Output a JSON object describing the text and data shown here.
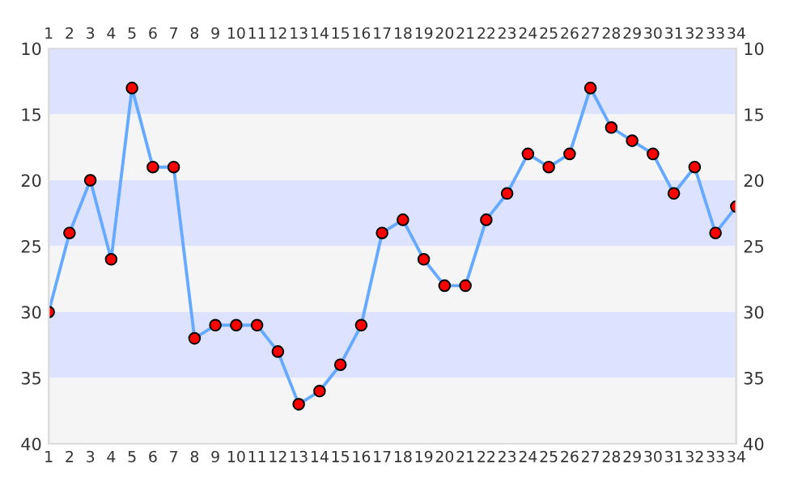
{
  "chart_data": {
    "type": "line",
    "x": [
      1,
      2,
      3,
      4,
      5,
      6,
      7,
      8,
      9,
      10,
      11,
      12,
      13,
      14,
      15,
      16,
      17,
      18,
      19,
      20,
      21,
      22,
      23,
      24,
      25,
      26,
      27,
      28,
      29,
      30,
      31,
      32,
      33,
      34
    ],
    "series": [
      {
        "color": "#66aaff",
        "colors": [
          "#ff0000",
          "#ff0000",
          "#ff0000",
          "#ff0000",
          "#ff0000",
          "#ff0000",
          "#ff0000",
          "#ff0000",
          "#ff0000",
          "#ff0000",
          "#ff0000",
          "#ff0000",
          "#ff0000",
          "#ff0000",
          "#ff0000",
          "#ff0000",
          "#ff0000",
          "#ff0000",
          "#ff0000",
          "#ff0000",
          "#ff0000",
          "#ff0000",
          "#ff0000",
          "#ff0000",
          "#ff0000",
          "#ff0000",
          "#ff0000",
          "#ff0000",
          "#ff0000",
          "#ff0000",
          "#ff0000",
          "#ff0000",
          "#ff0000",
          "#ff0000"
        ],
        "values": [
          30,
          24,
          20,
          26,
          13,
          19,
          19,
          32,
          31,
          31,
          31,
          33,
          37,
          36,
          34,
          31,
          24,
          23,
          26,
          28,
          28,
          23,
          21,
          18,
          19,
          18,
          13,
          16,
          17,
          18,
          21,
          19,
          24,
          22
        ]
      }
    ],
    "xlim": [
      1,
      34
    ],
    "xticks": [
      1,
      2,
      3,
      4,
      5,
      6,
      7,
      8,
      9,
      10,
      11,
      12,
      13,
      14,
      15,
      16,
      17,
      18,
      19,
      20,
      21,
      22,
      23,
      24,
      25,
      26,
      27,
      28,
      29,
      30,
      31,
      32,
      33,
      34
    ],
    "x2lim": [
      1,
      34
    ],
    "x2ticks": [
      1,
      2,
      3,
      4,
      5,
      6,
      7,
      8,
      9,
      10,
      11,
      12,
      13,
      14,
      15,
      16,
      17,
      18,
      19,
      20,
      21,
      22,
      23,
      24,
      25,
      26,
      27,
      28,
      29,
      30,
      31,
      32,
      33,
      34
    ],
    "ylim": [
      40,
      10
    ],
    "yticks": [
      10,
      15,
      20,
      25,
      30,
      35,
      40
    ],
    "y2lim": [
      40,
      10
    ],
    "y2ticks": [
      10,
      15,
      20,
      25,
      30,
      35,
      40
    ],
    "bands": [
      {
        "axis": "y",
        "from": 10,
        "to": 15,
        "color": "#dde3ff"
      },
      {
        "axis": "y",
        "from": 15,
        "to": 20,
        "color": "#f5f5f5"
      },
      {
        "axis": "y",
        "from": 20,
        "to": 25,
        "color": "#dde3ff"
      },
      {
        "axis": "y",
        "from": 25,
        "to": 30,
        "color": "#f5f5f5"
      },
      {
        "axis": "y",
        "from": 30,
        "to": 35,
        "color": "#dde3ff"
      },
      {
        "axis": "y",
        "from": 35,
        "to": 40,
        "color": "#f5f5f5"
      }
    ],
    "marker": "circle",
    "line_style": "solid",
    "grid": false,
    "legend": false
  }
}
